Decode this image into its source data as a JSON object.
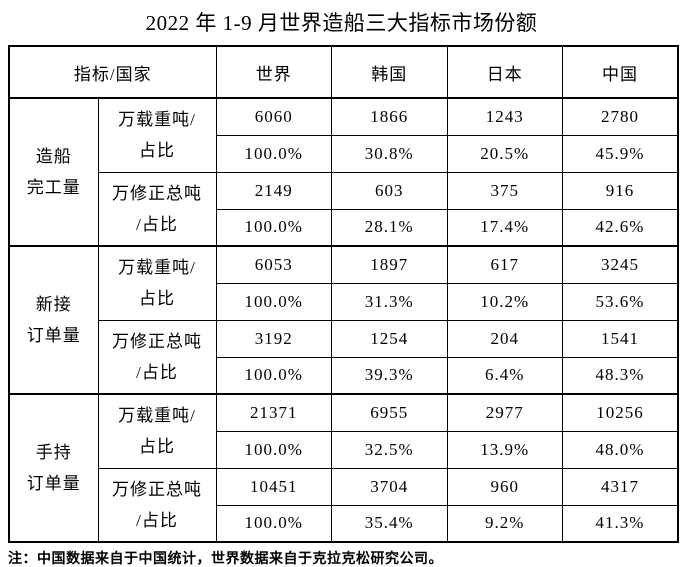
{
  "title": "2022 年 1-9 月世界造船三大指标市场份额",
  "table": {
    "header": {
      "indicator_country": "指标/国家",
      "columns": [
        "世界",
        "韩国",
        "日本",
        "中国"
      ]
    },
    "groups": [
      {
        "label_line1": "造船",
        "label_line2": "完工量",
        "subs": [
          {
            "label_line1": "万载重吨/",
            "label_line2": "占比",
            "values": [
              "6060",
              "1866",
              "1243",
              "2780"
            ],
            "shares": [
              "100.0%",
              "30.8%",
              "20.5%",
              "45.9%"
            ]
          },
          {
            "label_line1": "万修正总吨",
            "label_line2": "/占比",
            "values": [
              "2149",
              "603",
              "375",
              "916"
            ],
            "shares": [
              "100.0%",
              "28.1%",
              "17.4%",
              "42.6%"
            ]
          }
        ]
      },
      {
        "label_line1": "新接",
        "label_line2": "订单量",
        "subs": [
          {
            "label_line1": "万载重吨/",
            "label_line2": "占比",
            "values": [
              "6053",
              "1897",
              "617",
              "3245"
            ],
            "shares": [
              "100.0%",
              "31.3%",
              "10.2%",
              "53.6%"
            ]
          },
          {
            "label_line1": "万修正总吨",
            "label_line2": "/占比",
            "values": [
              "3192",
              "1254",
              "204",
              "1541"
            ],
            "shares": [
              "100.0%",
              "39.3%",
              "6.4%",
              "48.3%"
            ]
          }
        ]
      },
      {
        "label_line1": "手持",
        "label_line2": "订单量",
        "subs": [
          {
            "label_line1": "万载重吨/",
            "label_line2": "占比",
            "values": [
              "21371",
              "6955",
              "2977",
              "10256"
            ],
            "shares": [
              "100.0%",
              "32.5%",
              "13.9%",
              "48.0%"
            ]
          },
          {
            "label_line1": "万修正总吨",
            "label_line2": "/占比",
            "values": [
              "10451",
              "3704",
              "960",
              "4317"
            ],
            "shares": [
              "100.0%",
              "35.4%",
              "9.2%",
              "41.3%"
            ]
          }
        ]
      }
    ]
  },
  "note": "注：中国数据来自于中国统计，世界数据来自于克拉克松研究公司。"
}
